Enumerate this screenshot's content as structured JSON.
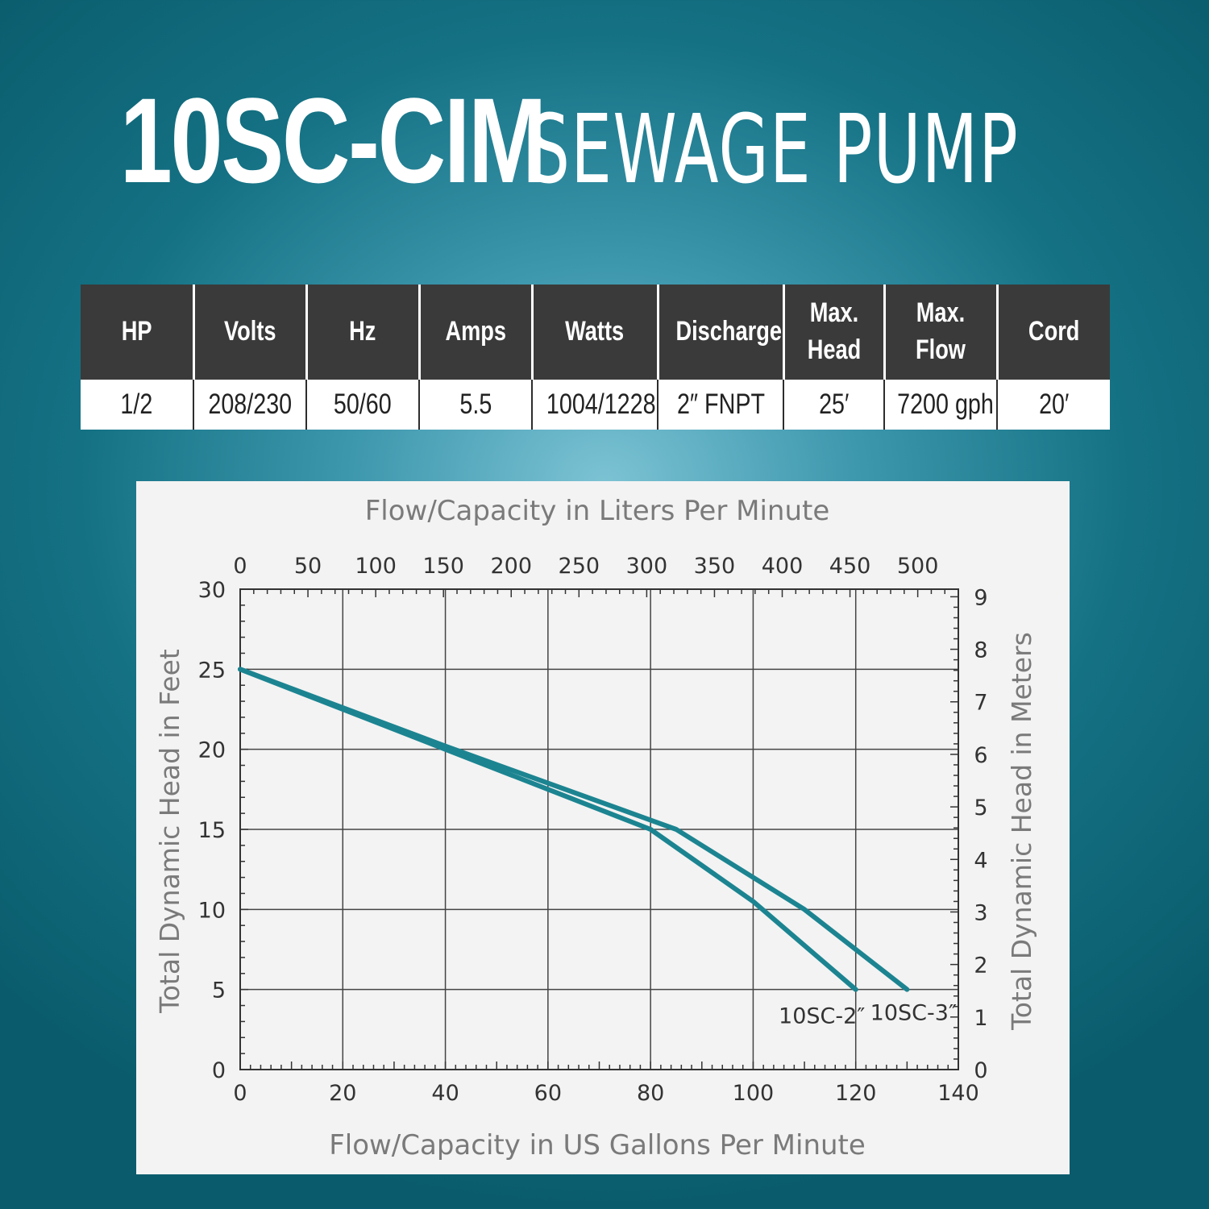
{
  "title": {
    "model": "10SC-CIM",
    "product": "SEWAGE PUMP"
  },
  "specs": {
    "headers": [
      "HP",
      "Volts",
      "Hz",
      "Amps",
      "Watts",
      "Discharge",
      "Max. Head",
      "Max. Flow",
      "Cord"
    ],
    "values": [
      "1/2",
      "208/230",
      "50/60",
      "5.5",
      "1004/1228",
      "2″ FNPT",
      "25′",
      "7200 gph",
      "20′"
    ]
  },
  "chart_data": {
    "type": "line",
    "title_top": "Flow/Capacity in Liters Per Minute",
    "xlabel": "Flow/Capacity in US Gallons Per Minute",
    "ylabel": "Total Dynamic Head in Feet",
    "ylabel_right": "Total Dynamic Head in Meters",
    "xlim": [
      0,
      140
    ],
    "ylim": [
      0,
      30
    ],
    "x_ticks": [
      0,
      20,
      40,
      60,
      80,
      100,
      120,
      140
    ],
    "y_ticks": [
      0,
      5,
      10,
      15,
      20,
      25,
      30
    ],
    "x2_ticks": [
      0,
      50,
      100,
      150,
      200,
      250,
      300,
      350,
      400,
      450,
      500
    ],
    "y2_ticks": [
      0,
      1,
      2,
      3,
      4,
      5,
      6,
      7,
      8,
      9
    ],
    "grid": true,
    "line_color": "#1c8491",
    "series": [
      {
        "name": "10SC-2″",
        "x": [
          0,
          40,
          80,
          100,
          120
        ],
        "y": [
          25,
          20,
          15,
          10.5,
          5
        ]
      },
      {
        "name": "10SC-3″",
        "x": [
          0,
          40,
          85,
          110,
          130
        ],
        "y": [
          25,
          20.2,
          15,
          10,
          5
        ]
      }
    ]
  }
}
